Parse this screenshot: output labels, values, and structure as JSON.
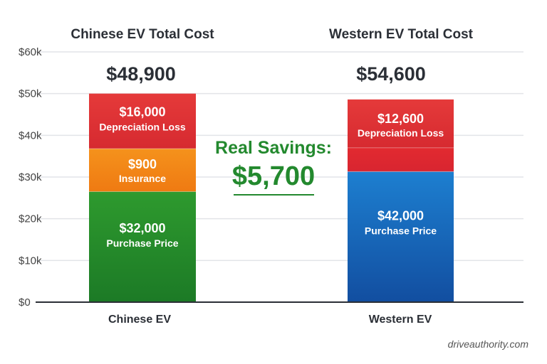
{
  "chart_data": {
    "type": "bar",
    "stacked": true,
    "titles": [
      "Chinese EV Total Cost",
      "Western EV Total Cost"
    ],
    "categories": [
      "Chinese EV",
      "Western EV"
    ],
    "totals": [
      "$48,900",
      "$54,600"
    ],
    "ylim": [
      0,
      60000
    ],
    "yticks": [
      0,
      10000,
      20000,
      30000,
      40000,
      50000,
      60000
    ],
    "ytick_labels": [
      "$0",
      "$10k",
      "$20k",
      "$30k",
      "$40k",
      "$50k",
      "$60k"
    ],
    "grid": true,
    "bars": [
      {
        "category": "Chinese EV",
        "segments": [
          {
            "name": "Purchase Price",
            "value_label": "$32,000",
            "value": 32000,
            "drawn_from": 0,
            "drawn_to": 26500,
            "color": "#2e9a2e",
            "color_dark": "#1c7a26"
          },
          {
            "name": "Insurance",
            "value_label": "$900",
            "value": 900,
            "drawn_from": 26500,
            "drawn_to": 36800,
            "color": "#f5921c",
            "color_dark": "#ef7a12"
          },
          {
            "name": "Depreciation Loss",
            "value_label": "$16,000",
            "value": 16000,
            "drawn_from": 36800,
            "drawn_to": 50000,
            "color": "#e53a3a",
            "color_dark": "#d62a30"
          }
        ]
      },
      {
        "category": "Western EV",
        "segments": [
          {
            "name": "Purchase Price",
            "value_label": "$42,000",
            "value": 42000,
            "drawn_from": 0,
            "drawn_to": 31300,
            "color": "#1d7fd0",
            "color_dark": "#124ea0"
          },
          {
            "name": "",
            "value_label": "",
            "value": null,
            "drawn_from": 31300,
            "drawn_to": 37000,
            "color": "#e22a30",
            "color_dark": "#d82530"
          },
          {
            "name": "Depreciation Loss",
            "value_label": "$12,600",
            "value": 12600,
            "drawn_from": 37000,
            "drawn_to": 48600,
            "color": "#e53a3a",
            "color_dark": "#d62a30"
          }
        ]
      }
    ],
    "annotation": {
      "label": "Real Savings:",
      "value": "$5,700",
      "color": "#23892e"
    }
  },
  "watermark": "driveauthority.com"
}
